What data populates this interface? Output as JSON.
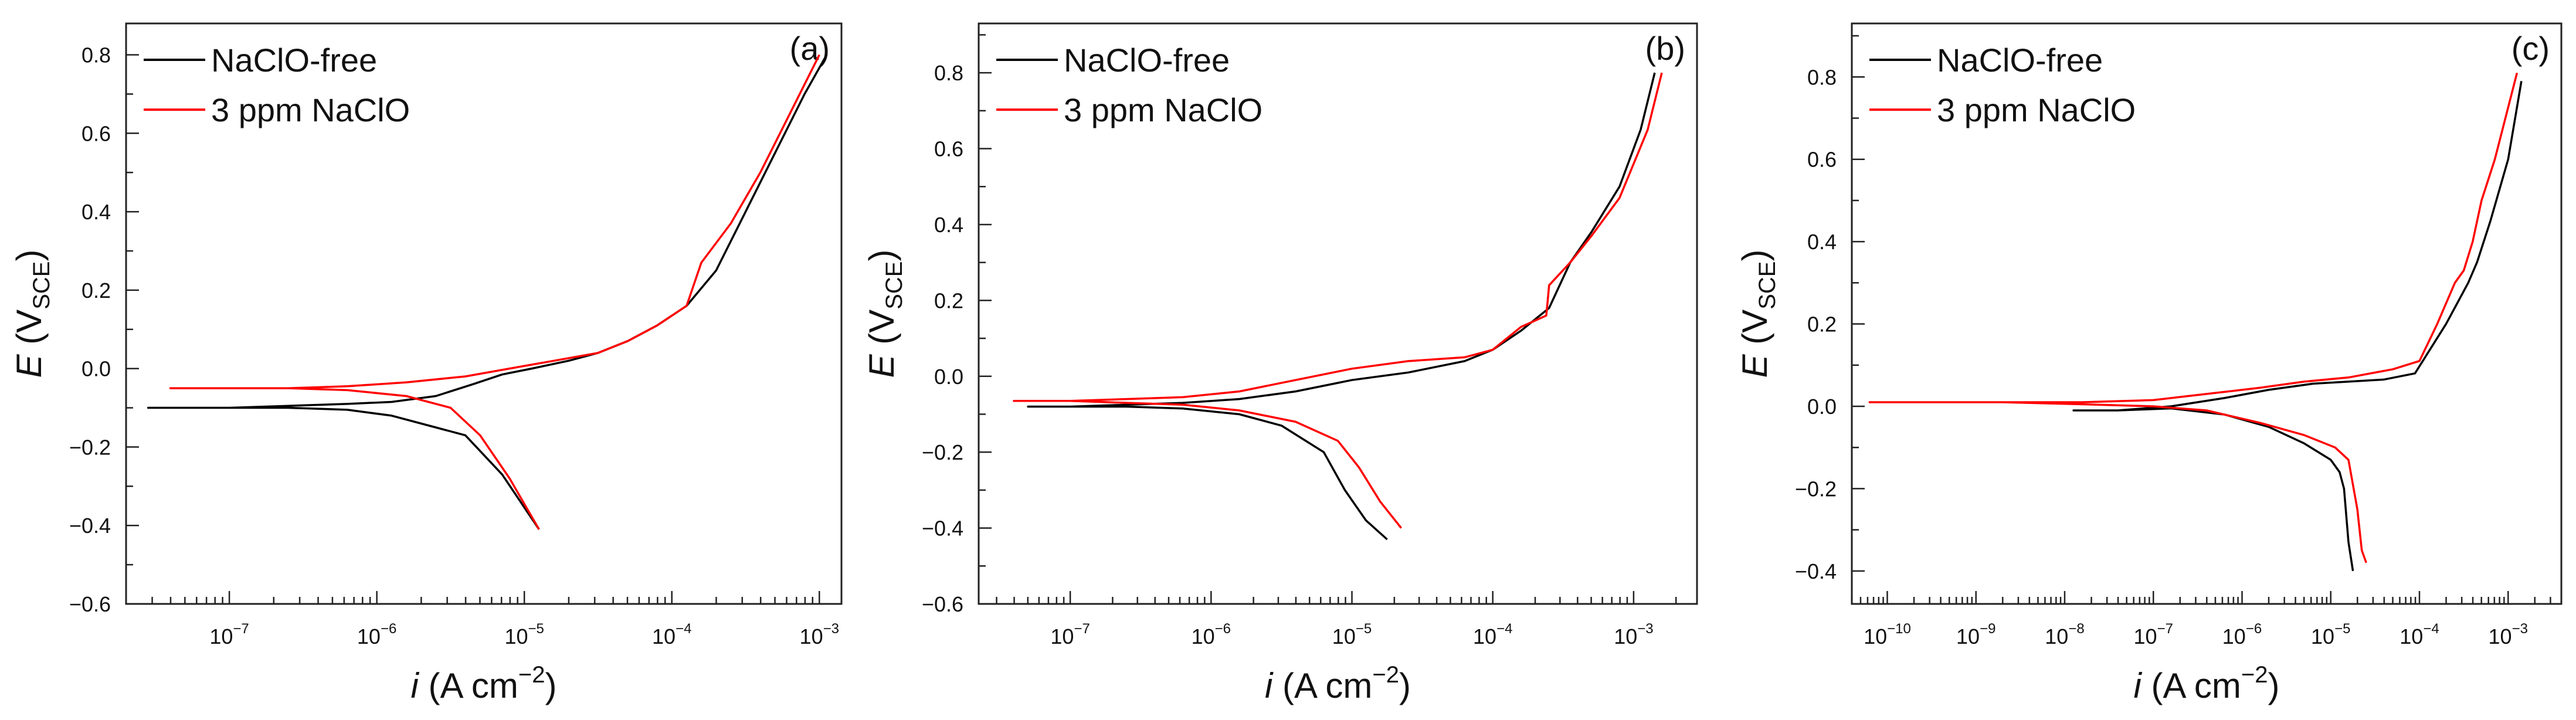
{
  "chart_data": [
    {
      "type": "line",
      "panel_label": "(a)",
      "xlabel_italic": "i",
      "xlabel_rest": " (A cm",
      "xlabel_sup": "−2",
      "xlabel_close": ")",
      "ylabel_italic": "E",
      "ylabel_open": " (V",
      "ylabel_sub": "SCE",
      "ylabel_close": ")",
      "xscale": "log",
      "xlim_log10": [
        -7.7,
        -2.85
      ],
      "ylim": [
        -0.6,
        0.88
      ],
      "x_ticks_log10": [
        -7,
        -6,
        -5,
        -4,
        -3
      ],
      "x_tick_labels": [
        "10",
        "10",
        "10",
        "10",
        "10"
      ],
      "x_tick_sups": [
        "−7",
        "−6",
        "−5",
        "−4",
        "−3"
      ],
      "y_ticks": [
        -0.6,
        -0.4,
        -0.2,
        0.0,
        0.2,
        0.4,
        0.6,
        0.8
      ],
      "y_tick_labels": [
        "−0.6",
        "−0.4",
        "−0.2",
        "0.0",
        "0.2",
        "0.4",
        "0.6",
        "0.8"
      ],
      "legend_position": "top-left",
      "series": [
        {
          "name": "NaClO-free",
          "color": "#000000",
          "log_i": [
            -4.9,
            -5.15,
            -5.4,
            -5.6,
            -5.9,
            -6.2,
            -6.6,
            -7.0,
            -7.3,
            -7.55,
            -7.3,
            -7.0,
            -6.6,
            -6.2,
            -5.9,
            -5.6,
            -5.35,
            -5.15,
            -4.95,
            -4.7,
            -4.5,
            -4.3,
            -4.1,
            -3.9,
            -3.7,
            -3.5,
            -3.3,
            -3.1,
            -2.95
          ],
          "E": [
            -0.41,
            -0.27,
            -0.17,
            -0.15,
            -0.12,
            -0.105,
            -0.1,
            -0.1,
            -0.1,
            -0.1,
            -0.1,
            -0.1,
            -0.095,
            -0.09,
            -0.085,
            -0.07,
            -0.04,
            -0.015,
            0.0,
            0.02,
            0.04,
            0.07,
            0.11,
            0.16,
            0.25,
            0.4,
            0.55,
            0.7,
            0.8
          ]
        },
        {
          "name": "3 ppm NaClO",
          "color": "#ff0000",
          "log_i": [
            -4.9,
            -5.1,
            -5.3,
            -5.5,
            -5.8,
            -6.2,
            -6.6,
            -7.0,
            -7.4,
            -7.0,
            -6.6,
            -6.2,
            -5.8,
            -5.4,
            -5.1,
            -4.8,
            -4.5,
            -4.3,
            -4.1,
            -3.9,
            -3.8,
            -3.6,
            -3.4,
            -3.2,
            -3.0
          ],
          "E": [
            -0.41,
            -0.28,
            -0.17,
            -0.1,
            -0.07,
            -0.055,
            -0.05,
            -0.05,
            -0.05,
            -0.05,
            -0.05,
            -0.045,
            -0.035,
            -0.02,
            0.0,
            0.02,
            0.04,
            0.07,
            0.11,
            0.16,
            0.27,
            0.37,
            0.5,
            0.65,
            0.8
          ]
        }
      ]
    },
    {
      "type": "line",
      "panel_label": "(b)",
      "xlabel_italic": "i",
      "xlabel_rest": " (A cm",
      "xlabel_sup": "−2",
      "xlabel_close": ")",
      "ylabel_italic": "E",
      "ylabel_open": " (V",
      "ylabel_sub": "SCE",
      "ylabel_close": ")",
      "xscale": "log",
      "xlim_log10": [
        -7.65,
        -2.55
      ],
      "ylim": [
        -0.6,
        0.93
      ],
      "x_ticks_log10": [
        -7,
        -6,
        -5,
        -4,
        -3
      ],
      "x_tick_labels": [
        "10",
        "10",
        "10",
        "10",
        "10"
      ],
      "x_tick_sups": [
        "−7",
        "−6",
        "−5",
        "−4",
        "−3"
      ],
      "y_ticks": [
        -0.6,
        -0.4,
        -0.2,
        0.0,
        0.2,
        0.4,
        0.6,
        0.8
      ],
      "y_tick_labels": [
        "−0.6",
        "−0.4",
        "−0.2",
        "0.0",
        "0.2",
        "0.4",
        "0.6",
        "0.8"
      ],
      "legend_position": "top-left",
      "series": [
        {
          "name": "NaClO-free",
          "color": "#000000",
          "log_i": [
            -4.75,
            -4.9,
            -5.05,
            -5.2,
            -5.5,
            -5.8,
            -6.2,
            -6.6,
            -7.0,
            -7.3,
            -7.0,
            -6.6,
            -6.2,
            -5.8,
            -5.4,
            -5.0,
            -4.6,
            -4.2,
            -4.0,
            -3.8,
            -3.6,
            -3.45,
            -3.3,
            -3.1,
            -2.95,
            -2.85
          ],
          "E": [
            -0.43,
            -0.38,
            -0.3,
            -0.2,
            -0.13,
            -0.1,
            -0.085,
            -0.08,
            -0.08,
            -0.08,
            -0.08,
            -0.075,
            -0.07,
            -0.06,
            -0.04,
            -0.01,
            0.01,
            0.04,
            0.07,
            0.12,
            0.18,
            0.3,
            0.38,
            0.5,
            0.65,
            0.8
          ]
        },
        {
          "name": "3 ppm NaClO",
          "color": "#ff0000",
          "log_i": [
            -4.65,
            -4.8,
            -4.95,
            -5.1,
            -5.4,
            -5.8,
            -6.2,
            -6.6,
            -7.0,
            -7.4,
            -7.0,
            -6.6,
            -6.2,
            -5.8,
            -5.4,
            -5.0,
            -4.6,
            -4.2,
            -4.0,
            -3.8,
            -3.62,
            -3.6,
            -3.45,
            -3.3,
            -3.1,
            -2.9,
            -2.8
          ],
          "E": [
            -0.4,
            -0.33,
            -0.24,
            -0.17,
            -0.12,
            -0.09,
            -0.075,
            -0.07,
            -0.065,
            -0.065,
            -0.065,
            -0.06,
            -0.055,
            -0.04,
            -0.01,
            0.02,
            0.04,
            0.05,
            0.07,
            0.13,
            0.16,
            0.24,
            0.3,
            0.37,
            0.47,
            0.65,
            0.8
          ]
        }
      ]
    },
    {
      "type": "line",
      "panel_label": "(c)",
      "xlabel_italic": "i",
      "xlabel_rest": " (A cm",
      "xlabel_sup": "−2",
      "xlabel_close": ")",
      "ylabel_italic": "E",
      "ylabel_open": " (V",
      "ylabel_sub": "SCE",
      "ylabel_close": ")",
      "xscale": "log",
      "xlim_log10": [
        -10.4,
        -2.4
      ],
      "ylim": [
        -0.48,
        0.93
      ],
      "x_ticks_log10": [
        -10,
        -9,
        -8,
        -7,
        -6,
        -5,
        -4,
        -3
      ],
      "x_tick_labels": [
        "10",
        "10",
        "10",
        "10",
        "10",
        "10",
        "10",
        "10"
      ],
      "x_tick_sups": [
        "−10",
        "−9",
        "−8",
        "−7",
        "−6",
        "−5",
        "−4",
        "−3"
      ],
      "y_ticks": [
        -0.4,
        -0.2,
        0.0,
        0.2,
        0.4,
        0.6,
        0.8
      ],
      "y_tick_labels": [
        "−0.4",
        "−0.2",
        "0.0",
        "0.2",
        "0.4",
        "0.6",
        "0.8"
      ],
      "legend_position": "top-left",
      "series": [
        {
          "name": "NaClO-free",
          "color": "#000000",
          "log_i": [
            -4.75,
            -4.8,
            -4.85,
            -4.9,
            -5.0,
            -5.3,
            -5.7,
            -6.2,
            -6.8,
            -7.4,
            -7.9,
            -7.4,
            -6.8,
            -6.2,
            -5.7,
            -5.2,
            -4.8,
            -4.4,
            -4.05,
            -3.7,
            -3.55,
            -3.45,
            -3.35,
            -3.2,
            -3.0,
            -2.85
          ],
          "E": [
            -0.4,
            -0.33,
            -0.2,
            -0.16,
            -0.13,
            -0.09,
            -0.05,
            -0.02,
            -0.005,
            -0.01,
            -0.01,
            -0.01,
            0.0,
            0.02,
            0.04,
            0.055,
            0.06,
            0.065,
            0.08,
            0.2,
            0.26,
            0.3,
            0.35,
            0.45,
            0.6,
            0.79
          ]
        },
        {
          "name": "3 ppm NaClO",
          "color": "#ff0000",
          "log_i": [
            -4.6,
            -4.65,
            -4.7,
            -4.8,
            -4.95,
            -5.3,
            -5.8,
            -6.4,
            -7.0,
            -7.8,
            -8.7,
            -9.5,
            -10.2,
            -9.5,
            -8.7,
            -7.8,
            -7.0,
            -6.4,
            -5.8,
            -5.3,
            -4.8,
            -4.3,
            -4.0,
            -3.8,
            -3.6,
            -3.5,
            -3.4,
            -3.3,
            -3.15,
            -2.9
          ],
          "E": [
            -0.38,
            -0.35,
            -0.25,
            -0.13,
            -0.1,
            -0.07,
            -0.04,
            -0.01,
            0.0,
            0.005,
            0.01,
            0.01,
            0.01,
            0.01,
            0.01,
            0.01,
            0.015,
            0.03,
            0.045,
            0.06,
            0.07,
            0.09,
            0.11,
            0.2,
            0.3,
            0.33,
            0.4,
            0.5,
            0.6,
            0.81
          ]
        }
      ]
    }
  ]
}
